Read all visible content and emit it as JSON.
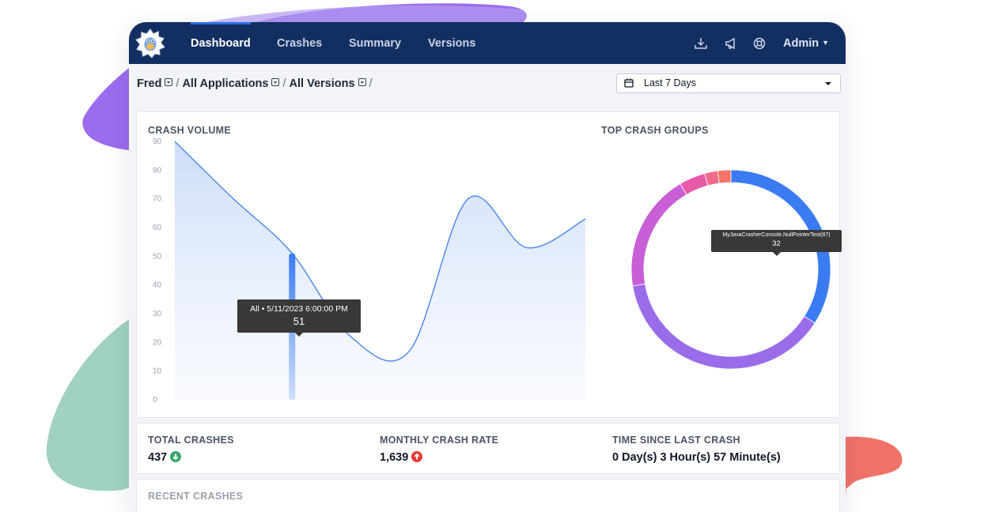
{
  "nav": {
    "tabs": [
      {
        "label": "Dashboard",
        "active": true
      },
      {
        "label": "Crashes",
        "active": false
      },
      {
        "label": "Summary",
        "active": false
      },
      {
        "label": "Versions",
        "active": false
      }
    ],
    "icons": [
      "download-icon",
      "megaphone-icon",
      "lifebuoy-icon"
    ],
    "user_menu": "Admin"
  },
  "breadcrumb": {
    "items": [
      "Fred",
      "All Applications",
      "All Versions"
    ],
    "separator": "/"
  },
  "date_range": {
    "selected": "Last 7 Days",
    "icon": "calendar-icon"
  },
  "colors": {
    "navbar": "#132f62",
    "line": "#4a84ea",
    "pie": [
      "#3b7bf2",
      "#9a6cea",
      "#c85fd6",
      "#e75aa8",
      "#f06a8a",
      "#f57566"
    ],
    "up_icon": "#e53935",
    "down_icon": "#3aa66a"
  },
  "crash_volume": {
    "title": "CRASH VOLUME",
    "tooltip": {
      "header": "All • 5/11/2023 6:00:00 PM",
      "value": "51"
    }
  },
  "top_crash_groups": {
    "title": "TOP CRASH GROUPS",
    "tooltip": {
      "header": "MyJavaCrasherConsole.NullPointerTest(87)",
      "value": "32"
    }
  },
  "chart_data": [
    {
      "type": "area",
      "title": "CRASH VOLUME",
      "ylim": [
        0,
        90
      ],
      "yticks": [
        0,
        10,
        20,
        30,
        40,
        50,
        60,
        70,
        80,
        90
      ],
      "grid": false,
      "x": [
        0,
        1,
        2,
        3,
        4,
        5,
        6,
        7
      ],
      "series": [
        {
          "values": [
            90,
            70,
            51,
            22,
            17,
            70,
            53,
            63
          ]
        }
      ],
      "highlight": {
        "x": 2,
        "value": 51
      }
    },
    {
      "type": "pie",
      "title": "TOP CRASH GROUPS",
      "donut": true,
      "slices": [
        {
          "name": "MyJavaCrasherConsole.NullPointerTest(87)",
          "value": 32
        },
        {
          "value": 36
        },
        {
          "value": 18
        },
        {
          "value": 4
        },
        {
          "value": 2
        },
        {
          "value": 2
        }
      ]
    }
  ],
  "stats": [
    {
      "label": "TOTAL CRASHES",
      "value": "437",
      "trend": "down"
    },
    {
      "label": "MONTHLY CRASH RATE",
      "value": "1,639",
      "trend": "up"
    },
    {
      "label": "TIME SINCE LAST CRASH",
      "value": "0 Day(s) 3 Hour(s) 57 Minute(s)"
    }
  ],
  "recent": {
    "title": "RECENT CRASHES"
  }
}
